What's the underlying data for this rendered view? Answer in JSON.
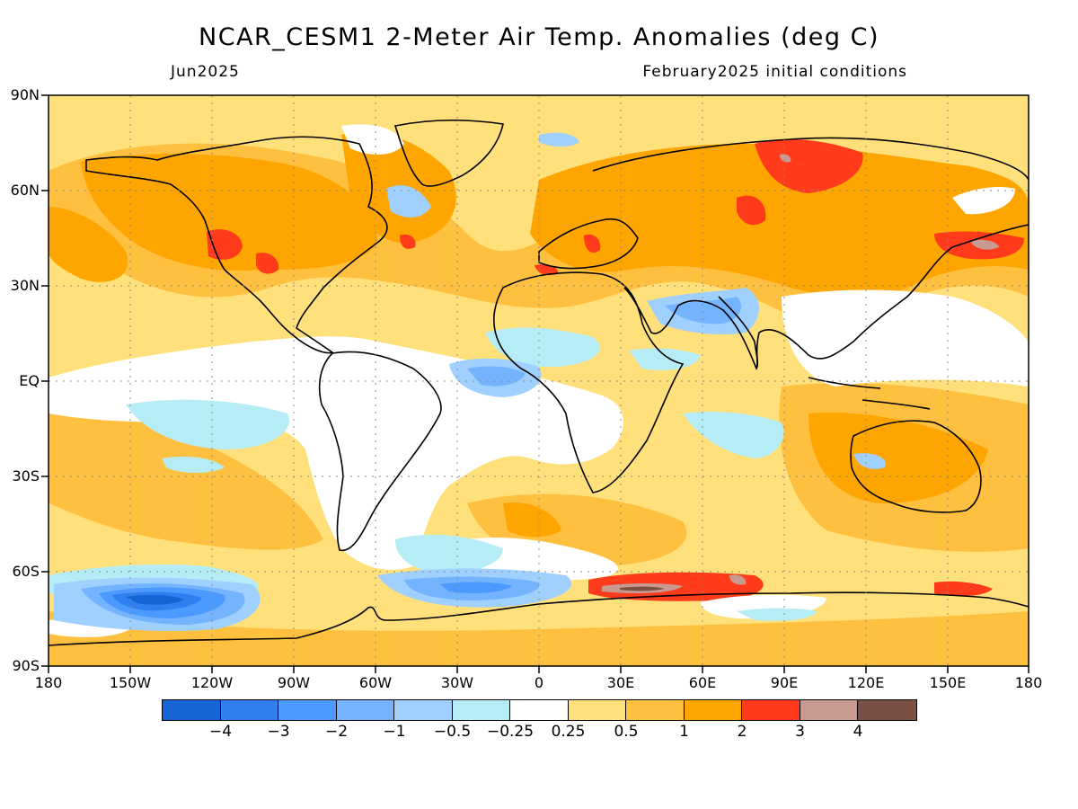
{
  "header": {
    "title": "NCAR_CESM1 2-Meter Air Temp. Anomalies (deg C)",
    "left_subtitle": "Jun2025",
    "right_subtitle": "February2025 initial conditions"
  },
  "map": {
    "projection": "equirectangular",
    "lat_labels": [
      "90N",
      "60N",
      "30N",
      "EQ",
      "30S",
      "60S",
      "90S"
    ],
    "lon_labels": [
      "180",
      "150W",
      "120W",
      "90W",
      "60W",
      "30W",
      "0",
      "30E",
      "60E",
      "90E",
      "120E",
      "150E",
      "180"
    ],
    "gridlines": "dotted",
    "ocean_default_color": "#ffe07a",
    "coastline_color": "#000000"
  },
  "colorbar": {
    "colors": [
      "#1565d8",
      "#2f7ff0",
      "#4c9aff",
      "#74b4ff",
      "#9fd0ff",
      "#b6ecf6",
      "#ffffff",
      "#ffe07a",
      "#ffbf3f",
      "#ffa500",
      "#ff3b1b",
      "#c89a90",
      "#7a5045"
    ],
    "labels": [
      "−4",
      "−3",
      "−2",
      "−1",
      "−0.5",
      "−0.25",
      "0.25",
      "0.5",
      "1",
      "2",
      "3",
      "4"
    ]
  }
}
